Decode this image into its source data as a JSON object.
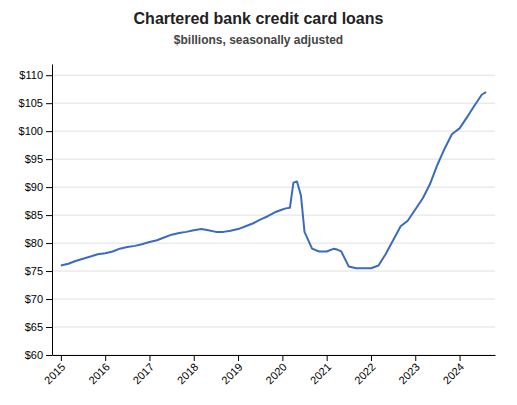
{
  "chart_data": {
    "type": "line",
    "title": "Chartered bank credit card loans",
    "subtitle": "$billions, seasonally adjusted",
    "color": "#3a6bbf",
    "grid": true,
    "xlim": [
      2014.8,
      2024.8
    ],
    "xticks": [
      2015,
      2016,
      2017,
      2018,
      2019,
      2020,
      2021,
      2022,
      2023,
      2024
    ],
    "ylim": [
      60,
      112
    ],
    "yticks": [
      {
        "value": 60,
        "label": "$60"
      },
      {
        "value": 65,
        "label": "$65"
      },
      {
        "value": 70,
        "label": "$70"
      },
      {
        "value": 75,
        "label": "$75"
      },
      {
        "value": 80,
        "label": "$80"
      },
      {
        "value": 85,
        "label": "$85"
      },
      {
        "value": 90,
        "label": "$90"
      },
      {
        "value": 95,
        "label": "$95"
      },
      {
        "value": 100,
        "label": "$100"
      },
      {
        "value": 105,
        "label": "$105"
      },
      {
        "value": 110,
        "label": "$110"
      }
    ],
    "x": [
      2015.0,
      2015.17,
      2015.33,
      2015.5,
      2015.67,
      2015.83,
      2016.0,
      2016.17,
      2016.33,
      2016.5,
      2016.67,
      2016.83,
      2017.0,
      2017.17,
      2017.33,
      2017.5,
      2017.67,
      2017.83,
      2018.0,
      2018.17,
      2018.33,
      2018.5,
      2018.67,
      2018.83,
      2019.0,
      2019.17,
      2019.33,
      2019.5,
      2019.67,
      2019.83,
      2020.0,
      2020.08,
      2020.17,
      2020.25,
      2020.33,
      2020.42,
      2020.5,
      2020.67,
      2020.83,
      2021.0,
      2021.17,
      2021.25,
      2021.33,
      2021.5,
      2021.67,
      2021.83,
      2022.0,
      2022.17,
      2022.33,
      2022.5,
      2022.67,
      2022.83,
      2023.0,
      2023.17,
      2023.33,
      2023.5,
      2023.67,
      2023.83,
      2024.0,
      2024.17,
      2024.33,
      2024.5,
      2024.6
    ],
    "values": [
      76.0,
      76.3,
      76.8,
      77.2,
      77.6,
      78.0,
      78.2,
      78.5,
      79.0,
      79.3,
      79.5,
      79.8,
      80.2,
      80.5,
      81.0,
      81.5,
      81.8,
      82.0,
      82.3,
      82.5,
      82.3,
      82.0,
      82.0,
      82.2,
      82.5,
      83.0,
      83.5,
      84.2,
      84.8,
      85.5,
      86.0,
      86.2,
      86.3,
      90.8,
      91.0,
      88.5,
      82.0,
      79.0,
      78.5,
      78.5,
      79.0,
      78.8,
      78.5,
      75.8,
      75.5,
      75.5,
      75.5,
      76.0,
      78.0,
      80.5,
      83.0,
      84.0,
      86.0,
      88.0,
      90.5,
      94.0,
      97.0,
      99.5,
      100.5,
      102.5,
      104.5,
      106.5,
      107.0
    ]
  }
}
